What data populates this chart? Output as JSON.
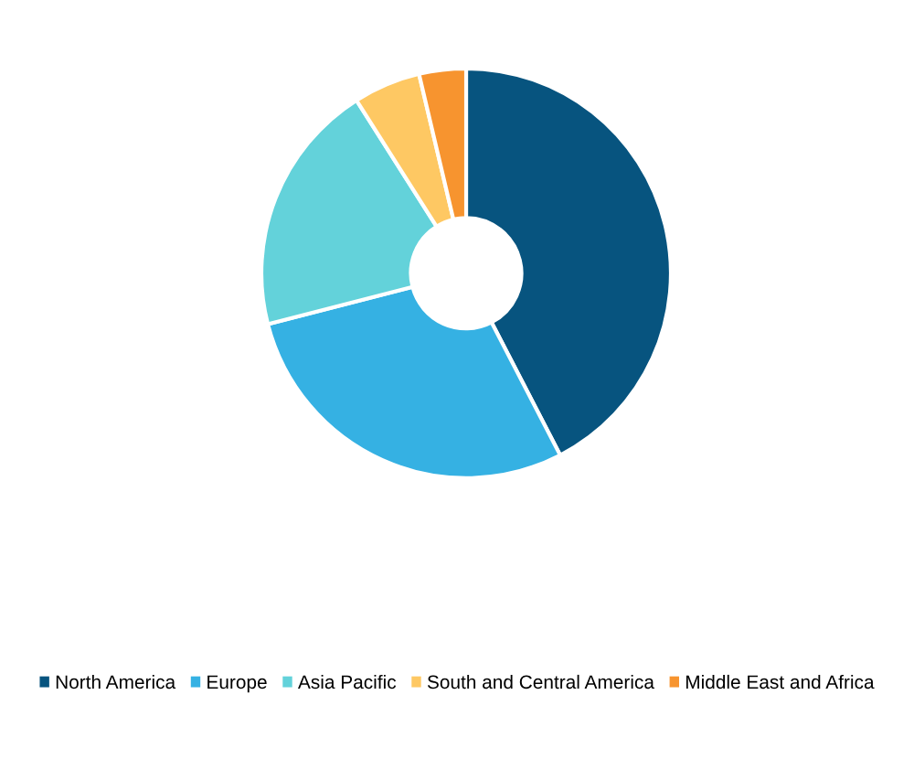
{
  "chart_data": {
    "type": "donut",
    "categories": [
      "North America",
      "Europe",
      "Asia Pacific",
      "South and Central America",
      "Middle East and Africa"
    ],
    "values": [
      42.4,
      28.6,
      20.0,
      5.3,
      3.7
    ],
    "colors": [
      "#07547f",
      "#35b1e3",
      "#63d2da",
      "#fec863",
      "#f7942f"
    ],
    "legend": "bottom"
  }
}
